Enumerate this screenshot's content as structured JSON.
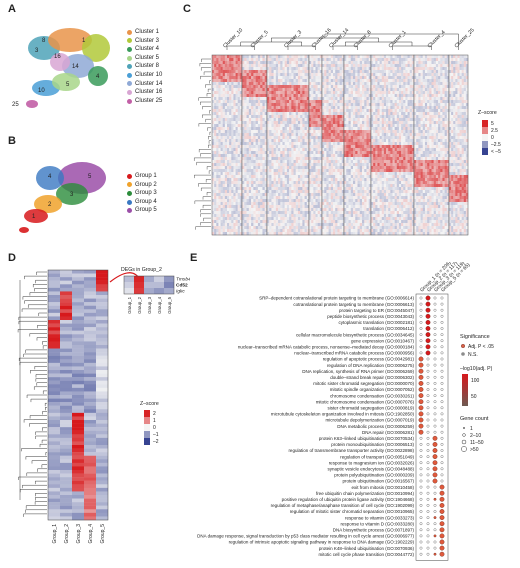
{
  "panels": {
    "a": "A",
    "b": "B",
    "c": "C",
    "d": "D",
    "e": "E"
  },
  "colors": {
    "c1": "#e9944a",
    "c3": "#b1c93a",
    "c4": "#3a9b5b",
    "c5": "#a8d68a",
    "c8": "#4fa3b8",
    "c10": "#4a9fd6",
    "c14": "#8fa9d6",
    "c16": "#d8a6d3",
    "c25": "#c25fa6",
    "g1": "#d7191c",
    "g2": "#f0a22b",
    "g3": "#2b8c3b",
    "g4": "#3a78c2",
    "g5": "#9b4fa8",
    "heat_hi": "#d7191c",
    "heat_mid": "#f5f5f5",
    "heat_lo": "#2c3a8c",
    "sig_dot": "#d9624a",
    "ns_dot": "#8c8c8c"
  },
  "umapA": {
    "legend": [
      "Cluster 1",
      "Cluster 3",
      "Cluster 4",
      "Cluster 5",
      "Cluster 8",
      "Cluster 10",
      "Cluster 14",
      "Cluster 16",
      "Cluster 25"
    ],
    "labels": [
      "1",
      "3",
      "4",
      "5",
      "8",
      "10",
      "14",
      "16",
      "25"
    ]
  },
  "umapB": {
    "legend": [
      "Group 1",
      "Group 2",
      "Group 3",
      "Group 4",
      "Group 5"
    ],
    "labels": [
      "1",
      "2",
      "3",
      "4",
      "5"
    ]
  },
  "panelC": {
    "clusters": [
      "Cluster_10",
      "Cluster_5",
      "Cluster_3",
      "Cluster_16",
      "Cluster_14",
      "Cluster_8",
      "Cluster_1",
      "Cluster_4",
      "Cluster_25"
    ],
    "scale_title": "Z–score",
    "scale_ticks": [
      "5",
      "2.5",
      "0",
      "–2.5",
      "< –5"
    ]
  },
  "panelD": {
    "groups": [
      "Group_1",
      "Group_2",
      "Group_3",
      "Group_4",
      "Group_5"
    ],
    "inset_title": "DEGs in Group_2",
    "inset_genes": [
      "Tmsb4x",
      "Cd52",
      "Igkc"
    ],
    "scale_title": "Z–score",
    "scale_ticks": [
      "2",
      "1",
      "0",
      "–1",
      "–2"
    ]
  },
  "panelE": {
    "groups": [
      "Group_1 (n = 206)",
      "Group_2 (n = 117)",
      "Group_3 (n = 119)",
      "Group_5 (n = 65)"
    ],
    "terms": [
      "SRP–dependent cotranslational protein targeting to membrane (GO:0006614)",
      "cotranslational protein targeting to membrane (GO:0006613)",
      "protein targeting to ER (GO:0045047)",
      "peptide biosynthetic process (GO:0043043)",
      "cytoplasmic translation (GO:0002181)",
      "translation (GO:0006412)",
      "cellular macromolecule biosynthetic process (GO:0034645)",
      "gene expression (GO:0010467)",
      "nuclear–transcribed mRNA catabolic process, nonsense–mediated decay (GO:0000184)",
      "nuclear–transcribed mRNA catabolic process (GO:0000956)",
      "regulation of apoptotic process (GO:0042981)",
      "regulation of DNA replication (GO:0006275)",
      "DNA replication, synthesis of RNA primer (GO:0006269)",
      "double–strand break repair (GO:0006302)",
      "mitotic sister chromatid segregation (GO:0000070)",
      "mitotic spindle organization (GO:0007052)",
      "chromosome condensation (GO:0030261)",
      "mitotic chromosome condensation (GO:0007076)",
      "sister chromatid segregation (GO:0000819)",
      "microtubule cytoskeleton organization involved in mitosis (GO:1902850)",
      "microtubule depolymerization (GO:0007019)",
      "DNA metabolic process (GO:0006259)",
      "DNA repair (GO:0006281)",
      "protein K63–linked ubiquitination (GO:0070534)",
      "protein monoubiquitination (GO:0006513)",
      "regulation of transmembrane transporter activity (GO:0022898)",
      "regulation of transport (GO:0051049)",
      "response to magnesium ion (GO:0032026)",
      "synaptic vesicle endocytosis (GO:0048488)",
      "protein polyubiquitination (GO:0000209)",
      "protein ubiquitination (GO:0016567)",
      "exit from mitosis (GO:0010458)",
      "free ubiquitin chain polymerization (GO:0010994)",
      "positive regulation of ubiquitin protein ligase activity (GO:1904668)",
      "regulation of metaphase/anaphase transition of cell cycle (GO:1902099)",
      "regulation of mitotic sister chromatid separation (GO:0010965)",
      "response to vitamin (GO:0033273)",
      "response to vitamin D (GO:0033280)",
      "DNA biosynthetic process (GO:0071897)",
      "DNA damage response, signal transduction by p53 class mediator resulting in cell cycle arrest (GO:0006977)",
      "regulation of intrinsic apoptotic signaling pathway in response to DNA damage (GO:1902229)",
      "protein K48–linked ubiquitination (GO:0070936)",
      "mitotic cell cycle phase transition (GO:0044772)"
    ],
    "sig_title": "Significance",
    "sig_items": [
      "Adj. P < .05",
      "N.S."
    ],
    "color_title": "–log10(adj. P)",
    "color_ticks": [
      "100",
      "50"
    ],
    "count_title": "Gene count",
    "count_items": [
      "1",
      "2–10",
      "11–50",
      ">50"
    ]
  }
}
